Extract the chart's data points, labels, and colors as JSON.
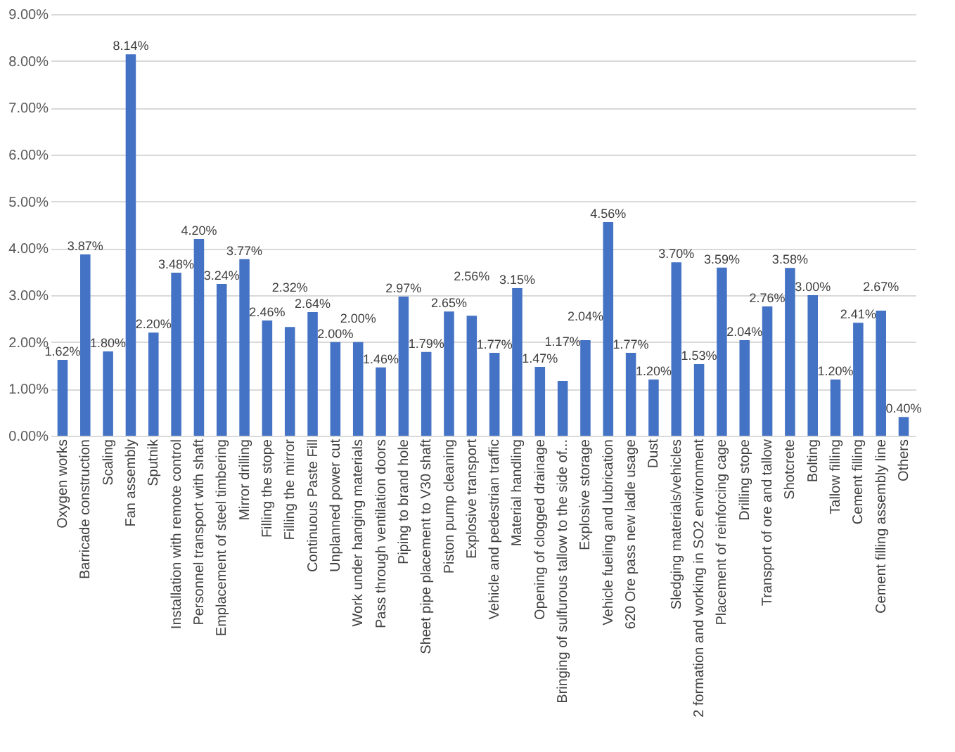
{
  "chart_data": {
    "type": "bar",
    "categories": [
      "Oxygen works",
      "Barricade construction",
      "Scaling",
      "Fan assembly",
      "Sputnik",
      "Installation with remote control",
      "Personnel transport with shaft",
      "Emplacement of steel timbering",
      "Mirror drilling",
      "Filling the stope",
      "Filling the mirror",
      "Continuous Paste Fill",
      "Unplanned power cut",
      "Work under hanging materials",
      "Pass through ventilation doors",
      "Piping to brand hole",
      "Sheet pipe placement to V30 shaft",
      "Piston pump cleaning",
      "Explosive transport",
      "Vehicle and pedestrian traffic",
      "Material handling",
      "Opening of clogged drainage",
      "Bringing of sulfurous tallow to the side of...",
      "Explosive storage",
      "Vehicle fueling and lubrication",
      "620 Ore pass new ladle usage",
      "Dust",
      "Sledging materials/vehicles",
      "2 formation and working in SO2 environment",
      "Placement of reinforcing cage",
      "Drilling stope",
      "Transport of ore and tallow",
      "Shotcrete",
      "Bolting",
      "Tallow filling",
      "Cement filling",
      "Cement filling assembly line",
      "Others"
    ],
    "values": [
      1.62,
      3.87,
      1.8,
      8.14,
      2.2,
      3.48,
      4.2,
      3.24,
      3.77,
      2.46,
      2.32,
      2.64,
      2.0,
      2.0,
      1.46,
      2.97,
      1.79,
      2.65,
      2.56,
      1.77,
      3.15,
      1.47,
      1.17,
      2.04,
      4.56,
      1.77,
      1.2,
      3.7,
      1.53,
      3.59,
      2.04,
      2.76,
      3.58,
      3.0,
      1.2,
      2.41,
      2.67,
      0.4
    ],
    "value_labels": [
      "1.62%",
      "3.87%",
      "1.80%",
      "8.14%",
      "2.20%",
      "3.48%",
      "4.20%",
      "3.24%",
      "3.77%",
      "2.46%",
      "2.32%",
      "2.64%",
      "2.00%",
      "2.00%",
      "1.46%",
      "2.97%",
      "1.79%",
      "2.65%",
      "2.56%",
      "1.77%",
      "3.15%",
      "1.47%",
      "1.17%",
      "2.04%",
      "4.56%",
      "1.77%",
      "1.20%",
      "3.70%",
      "1.53%",
      "3.59%",
      "2.04%",
      "2.76%",
      "3.58%",
      "3.00%",
      "1.20%",
      "2.41%",
      "2.67%",
      "0.40%"
    ],
    "color": "#4472c4",
    "ylim": [
      0,
      9
    ],
    "yticks": [
      {
        "value": 0,
        "label": "0.00%"
      },
      {
        "value": 1,
        "label": "1.00%"
      },
      {
        "value": 2,
        "label": "2.00%"
      },
      {
        "value": 3,
        "label": "3.00%"
      },
      {
        "value": 4,
        "label": "4.00%"
      },
      {
        "value": 5,
        "label": "5.00%"
      },
      {
        "value": 6,
        "label": "6.00%"
      },
      {
        "value": 7,
        "label": "7.00%"
      },
      {
        "value": 8,
        "label": "8.00%"
      },
      {
        "value": 9,
        "label": "9.00%"
      }
    ],
    "grid": "y"
  }
}
